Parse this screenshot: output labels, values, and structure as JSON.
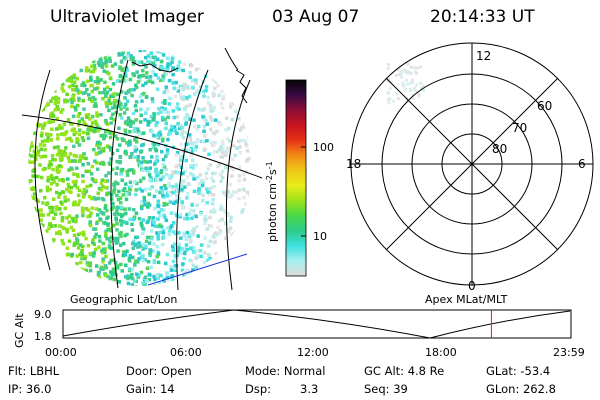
{
  "header": {
    "instrument": "Ultraviolet Imager",
    "date": "03 Aug 07",
    "time": "20:14:33 UT"
  },
  "colorbar": {
    "unit_label": "photon cm",
    "unit_sup1": "-2",
    "unit_s": "s",
    "unit_sup2": "-1",
    "ticks": [
      "100",
      "10"
    ],
    "stops": [
      "#dcdcdc",
      "#a8eeee",
      "#3ee0e0",
      "#2ccc8a",
      "#48d848",
      "#9ee21a",
      "#e8ec1a",
      "#f0c818",
      "#f08c14",
      "#e63214",
      "#c8141e",
      "#8c0e34",
      "#3a0a44",
      "#050505"
    ]
  },
  "polar_plot": {
    "mlt_labels": {
      "top": "12",
      "left": "18",
      "right": "6",
      "bottom": "0"
    },
    "lat_labels": [
      "60",
      "70",
      "80"
    ]
  },
  "panel_labels": {
    "left": "Geographic Lat/Lon",
    "right": "Apex MLat/MLT"
  },
  "altitude_plot": {
    "axis_title": "GC Alt",
    "y_max": "9.0",
    "y_min": "1.8",
    "x_ticks": [
      "00:00",
      "06:00",
      "12:00",
      "18:00",
      "23:59"
    ],
    "current_time_marker_hour": 20.24
  },
  "status": {
    "filter": "Flt: LBHL",
    "ip": "IP: 36.0",
    "door": "Door: Open",
    "gain": "Gain: 14",
    "mode": "Mode: Normal",
    "dsp_label": "Dsp:",
    "dsp_value": "3.3",
    "gc_alt": "GC Alt: 4.8 Re",
    "seq": "Seq: 39",
    "glat": "GLat: -53.4",
    "glon": "GLon: 262.8"
  }
}
